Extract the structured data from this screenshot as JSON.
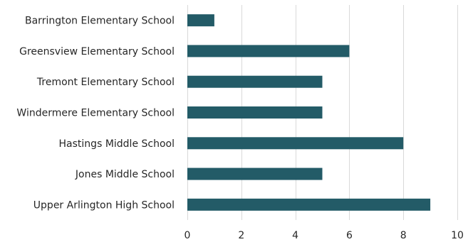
{
  "chart_data": {
    "type": "bar",
    "orientation": "horizontal",
    "categories": [
      "Barrington Elementary School",
      "Greensview Elementary School",
      "Tremont Elementary School",
      "Windermere Elementary School",
      "Hastings Middle School",
      "Jones Middle School",
      "Upper Arlington High School"
    ],
    "values": [
      1,
      6,
      5,
      5,
      8,
      5,
      9
    ],
    "xlim": [
      0,
      10
    ],
    "xticks": [
      0,
      2,
      4,
      6,
      8,
      10
    ],
    "tick_labels": [
      "0",
      "2",
      "4",
      "6",
      "8",
      "10"
    ],
    "grid": "vertical",
    "legend": "none",
    "bar_color": "#235b67"
  }
}
